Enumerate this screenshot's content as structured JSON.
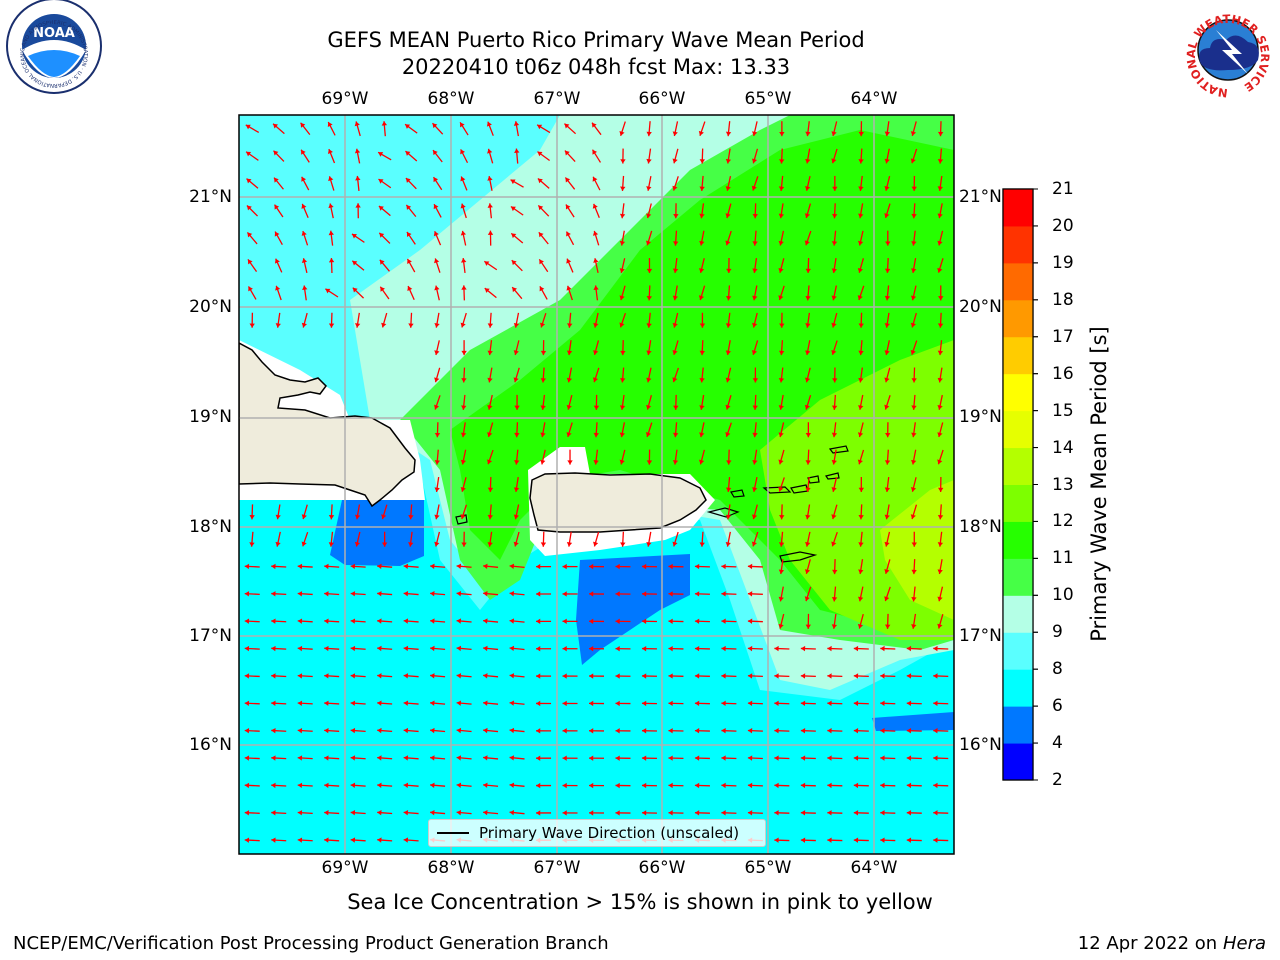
{
  "header": {
    "title_line1": "GEFS MEAN Puerto Rico Primary Wave Mean Period",
    "title_line2": "20220410 t06z 048h fcst   Max: 13.33"
  },
  "logos": {
    "left": "NOAA",
    "left_ring_text": "NATIONAL OCEANIC AND ATMOSPHERIC ADMINISTRATION · U.S. DEPARTMENT OF COMMERCE",
    "right_ring_text": "NATIONAL WEATHER SERVICE"
  },
  "map": {
    "lon_labels": [
      "69°W",
      "68°W",
      "67°W",
      "66°W",
      "65°W",
      "64°W"
    ],
    "lat_labels": [
      "21°N",
      "20°N",
      "19°N",
      "18°N",
      "17°N",
      "16°N"
    ],
    "lon_extent": [
      -69.99,
      -63.25
    ],
    "lat_extent": [
      15.0,
      21.75
    ],
    "legend_label": "Primary Wave Direction (unscaled)",
    "arrow_color": "#ff0000"
  },
  "colorbar": {
    "title": "Primary Wave Mean Period [s]",
    "ticks": [
      "2",
      "4",
      "6",
      "8",
      "9",
      "10",
      "11",
      "12",
      "13",
      "14",
      "15",
      "16",
      "17",
      "18",
      "19",
      "20",
      "21"
    ],
    "bins": [
      {
        "from": 2,
        "to": 4,
        "color": "#0000ff"
      },
      {
        "from": 4,
        "to": 6,
        "color": "#0078ff"
      },
      {
        "from": 6,
        "to": 8,
        "color": "#00ffff"
      },
      {
        "from": 8,
        "to": 9,
        "color": "#5affff"
      },
      {
        "from": 9,
        "to": 10,
        "color": "#b4ffe6"
      },
      {
        "from": 10,
        "to": 11,
        "color": "#46ff46"
      },
      {
        "from": 11,
        "to": 12,
        "color": "#26ff00"
      },
      {
        "from": 12,
        "to": 13,
        "color": "#7dff00"
      },
      {
        "from": 13,
        "to": 14,
        "color": "#b4ff00"
      },
      {
        "from": 14,
        "to": 15,
        "color": "#e6ff00"
      },
      {
        "from": 15,
        "to": 16,
        "color": "#ffff00"
      },
      {
        "from": 16,
        "to": 17,
        "color": "#ffcc00"
      },
      {
        "from": 17,
        "to": 18,
        "color": "#ff9900"
      },
      {
        "from": 18,
        "to": 19,
        "color": "#ff6a00"
      },
      {
        "from": 19,
        "to": 20,
        "color": "#ff3300"
      },
      {
        "from": 20,
        "to": 21,
        "color": "#ff0000"
      }
    ]
  },
  "note": "Sea Ice Concentration > 15% is shown in pink to yellow",
  "footer": {
    "left": "NCEP/EMC/Verification Post Processing Product Generation Branch",
    "right_date": "12 Apr 2022 on ",
    "right_host": "Hera"
  }
}
